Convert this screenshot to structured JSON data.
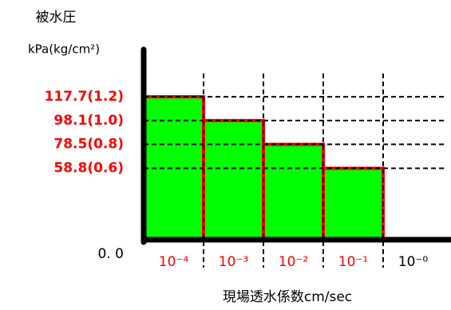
{
  "chart_data": {
    "type": "bar",
    "ylabel": "被水圧",
    "yunit": "kPa(kg/cm²)",
    "xlabel": "現場透水係数cm/sec",
    "categories": [
      "10⁻⁴",
      "10⁻³",
      "10⁻²",
      "10⁻¹",
      "10⁻⁰"
    ],
    "values": [
      117.7,
      98.1,
      78.5,
      58.8,
      null
    ],
    "color": "#00ff00",
    "edge_color": "#ff0000",
    "ylim": [
      0,
      150
    ],
    "yticks": [
      {
        "value": 0,
        "label": "0. 0"
      },
      {
        "value": 58.8,
        "label": "58.8(0.6)"
      },
      {
        "value": 78.5,
        "label": "78.5(0.8)"
      },
      {
        "value": 98.1,
        "label": "98.1(1.0)"
      },
      {
        "value": 117.7,
        "label": "117.7(1.2)"
      }
    ],
    "grid": true
  }
}
